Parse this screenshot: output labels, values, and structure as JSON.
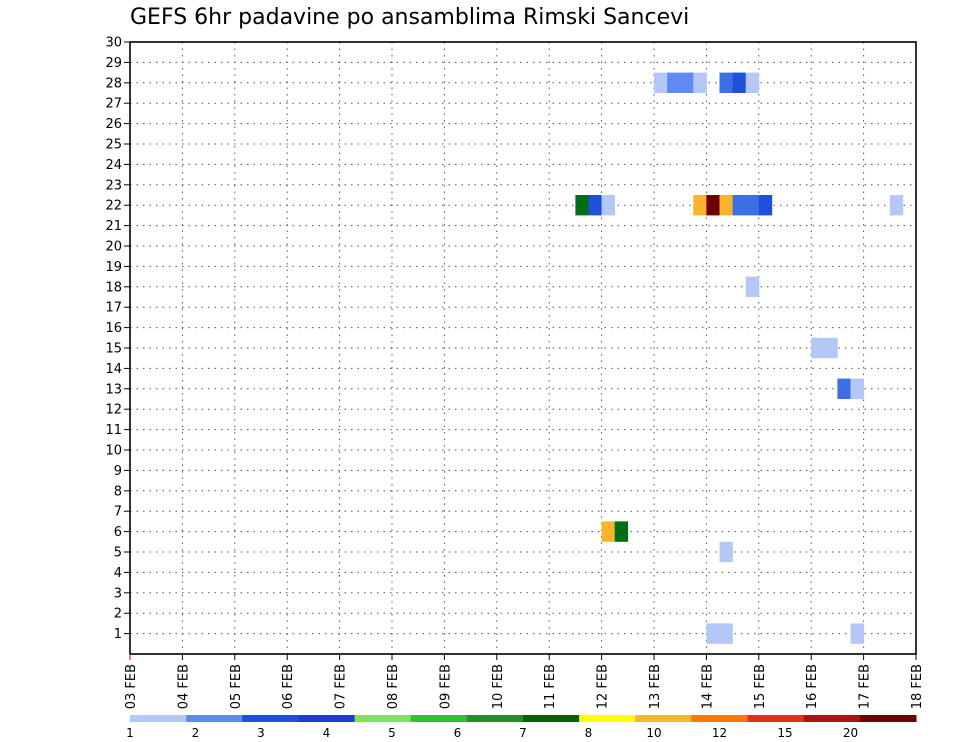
{
  "chart_data": {
    "type": "heatmap",
    "title": "GEFS 6hr padavine po ansamblima Rimski Sancevi",
    "xlabel": "",
    "ylabel": "",
    "x_tick_labels": [
      "03 FEB",
      "04 FEB",
      "05 FEB",
      "06 FEB",
      "07 FEB",
      "08 FEB",
      "09 FEB",
      "10 FEB",
      "11 FEB",
      "12 FEB",
      "13 FEB",
      "14 FEB",
      "15 FEB",
      "16 FEB",
      "17 FEB",
      "18 FEB"
    ],
    "y_tick_labels": [
      "1",
      "2",
      "3",
      "4",
      "5",
      "6",
      "7",
      "8",
      "9",
      "10",
      "11",
      "12",
      "13",
      "14",
      "15",
      "16",
      "17",
      "18",
      "19",
      "20",
      "21",
      "22",
      "23",
      "24",
      "25",
      "26",
      "27",
      "28",
      "29",
      "30"
    ],
    "xlim_days": [
      3,
      18
    ],
    "ylim_members": [
      0,
      30
    ],
    "grid": true,
    "grid_style": "dotted",
    "cells_unit": "x = day of February (6-hour steps), y = ensemble member, value = 6hr precipitation category",
    "cells": [
      {
        "x": 13.0,
        "y": 28,
        "v": 1
      },
      {
        "x": 13.25,
        "y": 28,
        "v": 2
      },
      {
        "x": 13.5,
        "y": 28,
        "v": 2
      },
      {
        "x": 13.75,
        "y": 28,
        "v": 1
      },
      {
        "x": 14.25,
        "y": 28,
        "v": 3
      },
      {
        "x": 14.5,
        "y": 28,
        "v": 4
      },
      {
        "x": 14.75,
        "y": 28,
        "v": 1
      },
      {
        "x": 11.5,
        "y": 22,
        "v": 7
      },
      {
        "x": 11.75,
        "y": 22,
        "v": 4
      },
      {
        "x": 12.0,
        "y": 22,
        "v": 1
      },
      {
        "x": 13.75,
        "y": 22,
        "v": 9
      },
      {
        "x": 14.0,
        "y": 22,
        "v": 20
      },
      {
        "x": 14.25,
        "y": 22,
        "v": 9
      },
      {
        "x": 14.5,
        "y": 22,
        "v": 3
      },
      {
        "x": 14.75,
        "y": 22,
        "v": 3
      },
      {
        "x": 15.0,
        "y": 22,
        "v": 4
      },
      {
        "x": 17.5,
        "y": 22,
        "v": 1
      },
      {
        "x": 14.75,
        "y": 18,
        "v": 1
      },
      {
        "x": 16.0,
        "y": 15,
        "v": 1
      },
      {
        "x": 16.25,
        "y": 15,
        "v": 1
      },
      {
        "x": 16.5,
        "y": 13,
        "v": 3
      },
      {
        "x": 16.75,
        "y": 13,
        "v": 1
      },
      {
        "x": 12.0,
        "y": 6,
        "v": 9
      },
      {
        "x": 12.25,
        "y": 6,
        "v": 7
      },
      {
        "x": 14.25,
        "y": 5,
        "v": 1
      },
      {
        "x": 14.0,
        "y": 1,
        "v": 1
      },
      {
        "x": 14.25,
        "y": 1,
        "v": 1
      },
      {
        "x": 16.75,
        "y": 1,
        "v": 1
      }
    ],
    "colorbar": {
      "labels": [
        "1",
        "2",
        "3",
        "4",
        "5",
        "6",
        "7",
        "8",
        "10",
        "12",
        "15",
        "20"
      ],
      "colors": [
        "#b4c8f8",
        "#5f8af0",
        "#1e50dc",
        "#1e3ccd",
        "#78e65a",
        "#28c828",
        "#1e961e",
        "#006400",
        "#ffff00",
        "#fab428",
        "#fa780a",
        "#e13214",
        "#aa1414",
        "#6e0000"
      ]
    },
    "value_colors": {
      "1": "#b4c8f8",
      "2": "#5f8af0",
      "3": "#3c6ee6",
      "4": "#1e50dc",
      "7": "#006e12",
      "9": "#fab428",
      "20": "#6e0000"
    }
  }
}
